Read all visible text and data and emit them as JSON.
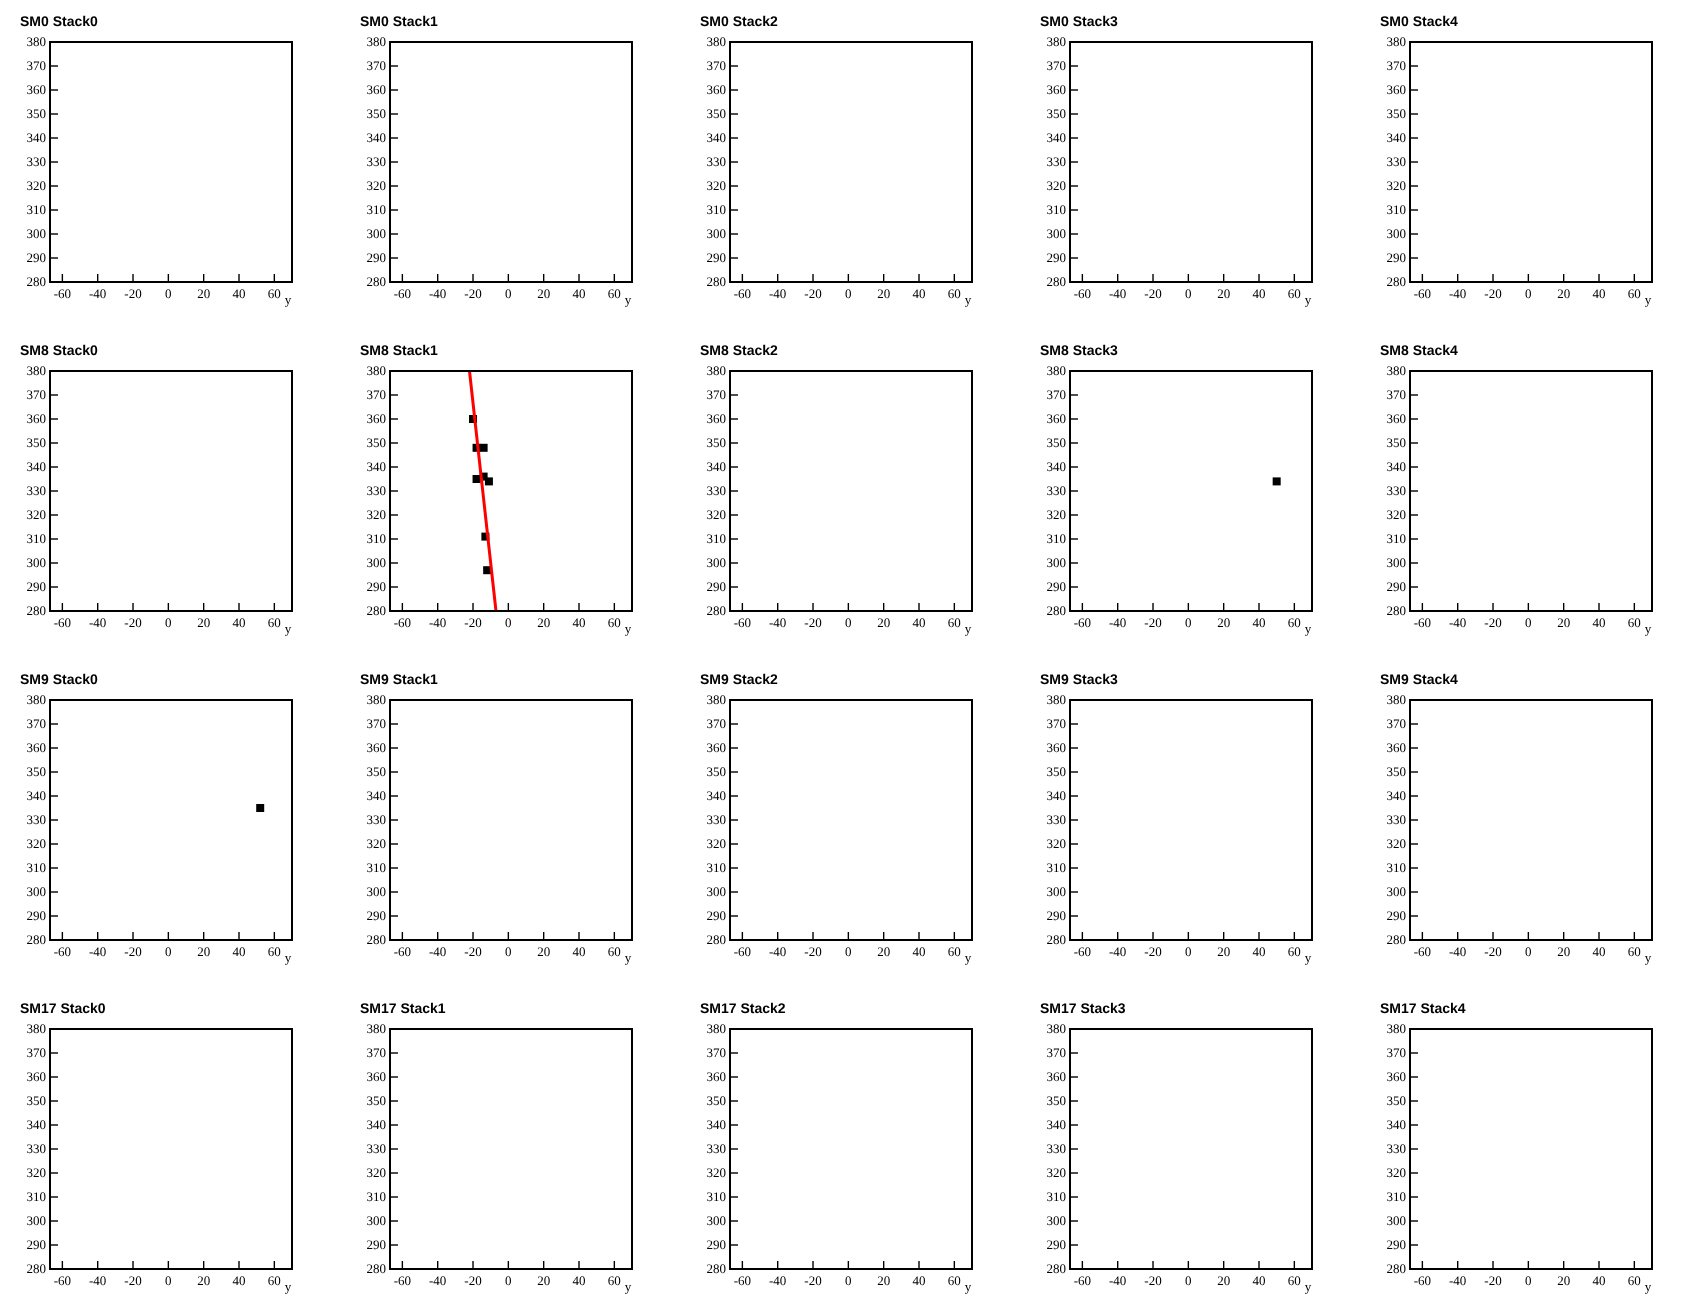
{
  "chart_data": [
    {
      "type": "scatter",
      "title": "SM0 Stack0",
      "xlabel": "y",
      "xlim": [
        -67,
        70
      ],
      "ylim": [
        280,
        380
      ],
      "xticks": [
        -60,
        -40,
        -20,
        0,
        20,
        40,
        60
      ],
      "yticks": [
        280,
        290,
        300,
        310,
        320,
        330,
        340,
        350,
        360,
        370,
        380
      ]
    },
    {
      "type": "scatter",
      "title": "SM0 Stack1",
      "xlabel": "y",
      "xlim": [
        -67,
        70
      ],
      "ylim": [
        280,
        380
      ],
      "xticks": [
        -60,
        -40,
        -20,
        0,
        20,
        40,
        60
      ],
      "yticks": [
        280,
        290,
        300,
        310,
        320,
        330,
        340,
        350,
        360,
        370,
        380
      ]
    },
    {
      "type": "scatter",
      "title": "SM0 Stack2",
      "xlabel": "y",
      "xlim": [
        -67,
        70
      ],
      "ylim": [
        280,
        380
      ],
      "xticks": [
        -60,
        -40,
        -20,
        0,
        20,
        40,
        60
      ],
      "yticks": [
        280,
        290,
        300,
        310,
        320,
        330,
        340,
        350,
        360,
        370,
        380
      ]
    },
    {
      "type": "scatter",
      "title": "SM0 Stack3",
      "xlabel": "y",
      "xlim": [
        -67,
        70
      ],
      "ylim": [
        280,
        380
      ],
      "xticks": [
        -60,
        -40,
        -20,
        0,
        20,
        40,
        60
      ],
      "yticks": [
        280,
        290,
        300,
        310,
        320,
        330,
        340,
        350,
        360,
        370,
        380
      ]
    },
    {
      "type": "scatter",
      "title": "SM0 Stack4",
      "xlabel": "y",
      "xlim": [
        -67,
        70
      ],
      "ylim": [
        280,
        380
      ],
      "xticks": [
        -60,
        -40,
        -20,
        0,
        20,
        40,
        60
      ],
      "yticks": [
        280,
        290,
        300,
        310,
        320,
        330,
        340,
        350,
        360,
        370,
        380
      ]
    },
    {
      "type": "scatter",
      "title": "SM8 Stack0",
      "xlabel": "y",
      "xlim": [
        -67,
        70
      ],
      "ylim": [
        280,
        380
      ],
      "xticks": [
        -60,
        -40,
        -20,
        0,
        20,
        40,
        60
      ],
      "yticks": [
        280,
        290,
        300,
        310,
        320,
        330,
        340,
        350,
        360,
        370,
        380
      ]
    },
    {
      "type": "scatter",
      "title": "SM8 Stack1",
      "xlabel": "y",
      "xlim": [
        -67,
        70
      ],
      "ylim": [
        280,
        380
      ],
      "xticks": [
        -60,
        -40,
        -20,
        0,
        20,
        40,
        60
      ],
      "yticks": [
        280,
        290,
        300,
        310,
        320,
        330,
        340,
        350,
        360,
        370,
        380
      ],
      "series": [
        {
          "color": "#000000",
          "marker": "square",
          "x": [
            -20,
            -18,
            -14,
            -18,
            -14,
            -11,
            -13,
            -12
          ],
          "values": [
            360,
            348,
            348,
            335,
            336,
            334,
            311,
            297
          ]
        },
        {
          "type": "line",
          "color": "#ff0000",
          "x": [
            -22,
            -7
          ],
          "values": [
            380,
            280
          ]
        }
      ]
    },
    {
      "type": "scatter",
      "title": "SM8 Stack2",
      "xlabel": "y",
      "xlim": [
        -67,
        70
      ],
      "ylim": [
        280,
        380
      ],
      "xticks": [
        -60,
        -40,
        -20,
        0,
        20,
        40,
        60
      ],
      "yticks": [
        280,
        290,
        300,
        310,
        320,
        330,
        340,
        350,
        360,
        370,
        380
      ]
    },
    {
      "type": "scatter",
      "title": "SM8 Stack3",
      "xlabel": "y",
      "xlim": [
        -67,
        70
      ],
      "ylim": [
        280,
        380
      ],
      "xticks": [
        -60,
        -40,
        -20,
        0,
        20,
        40,
        60
      ],
      "yticks": [
        280,
        290,
        300,
        310,
        320,
        330,
        340,
        350,
        360,
        370,
        380
      ],
      "marker": "square",
      "series": [
        {
          "color": "#000000",
          "x": [
            50
          ],
          "values": [
            334
          ]
        }
      ]
    },
    {
      "type": "scatter",
      "title": "SM8 Stack4",
      "xlabel": "y",
      "xlim": [
        -67,
        70
      ],
      "ylim": [
        280,
        380
      ],
      "xticks": [
        -60,
        -40,
        -20,
        0,
        20,
        40,
        60
      ],
      "yticks": [
        280,
        290,
        300,
        310,
        320,
        330,
        340,
        350,
        360,
        370,
        380
      ]
    },
    {
      "type": "scatter",
      "title": "SM9 Stack0",
      "xlabel": "y",
      "xlim": [
        -67,
        70
      ],
      "ylim": [
        280,
        380
      ],
      "xticks": [
        -60,
        -40,
        -20,
        0,
        20,
        40,
        60
      ],
      "yticks": [
        280,
        290,
        300,
        310,
        320,
        330,
        340,
        350,
        360,
        370,
        380
      ],
      "marker": "square",
      "series": [
        {
          "color": "#000000",
          "x": [
            52
          ],
          "values": [
            335
          ]
        }
      ]
    },
    {
      "type": "scatter",
      "title": "SM9 Stack1",
      "xlabel": "y",
      "xlim": [
        -67,
        70
      ],
      "ylim": [
        280,
        380
      ],
      "xticks": [
        -60,
        -40,
        -20,
        0,
        20,
        40,
        60
      ],
      "yticks": [
        280,
        290,
        300,
        310,
        320,
        330,
        340,
        350,
        360,
        370,
        380
      ]
    },
    {
      "type": "scatter",
      "title": "SM9 Stack2",
      "xlabel": "y",
      "xlim": [
        -67,
        70
      ],
      "ylim": [
        280,
        380
      ],
      "xticks": [
        -60,
        -40,
        -20,
        0,
        20,
        40,
        60
      ],
      "yticks": [
        280,
        290,
        300,
        310,
        320,
        330,
        340,
        350,
        360,
        370,
        380
      ]
    },
    {
      "type": "scatter",
      "title": "SM9 Stack3",
      "xlabel": "y",
      "xlim": [
        -67,
        70
      ],
      "ylim": [
        280,
        380
      ],
      "xticks": [
        -60,
        -40,
        -20,
        0,
        20,
        40,
        60
      ],
      "yticks": [
        280,
        290,
        300,
        310,
        320,
        330,
        340,
        350,
        360,
        370,
        380
      ]
    },
    {
      "type": "scatter",
      "title": "SM9 Stack4",
      "xlabel": "y",
      "xlim": [
        -67,
        70
      ],
      "ylim": [
        280,
        380
      ],
      "xticks": [
        -60,
        -40,
        -20,
        0,
        20,
        40,
        60
      ],
      "yticks": [
        280,
        290,
        300,
        310,
        320,
        330,
        340,
        350,
        360,
        370,
        380
      ]
    },
    {
      "type": "scatter",
      "title": "SM17 Stack0",
      "xlabel": "y",
      "xlim": [
        -67,
        70
      ],
      "ylim": [
        280,
        380
      ],
      "xticks": [
        -60,
        -40,
        -20,
        0,
        20,
        40,
        60
      ],
      "yticks": [
        280,
        290,
        300,
        310,
        320,
        330,
        340,
        350,
        360,
        370,
        380
      ]
    },
    {
      "type": "scatter",
      "title": "SM17 Stack1",
      "xlabel": "y",
      "xlim": [
        -67,
        70
      ],
      "ylim": [
        280,
        380
      ],
      "xticks": [
        -60,
        -40,
        -20,
        0,
        20,
        40,
        60
      ],
      "yticks": [
        280,
        290,
        300,
        310,
        320,
        330,
        340,
        350,
        360,
        370,
        380
      ]
    },
    {
      "type": "scatter",
      "title": "SM17 Stack2",
      "xlabel": "y",
      "xlim": [
        -67,
        70
      ],
      "ylim": [
        280,
        380
      ],
      "xticks": [
        -60,
        -40,
        -20,
        0,
        20,
        40,
        60
      ],
      "yticks": [
        280,
        290,
        300,
        310,
        320,
        330,
        340,
        350,
        360,
        370,
        380
      ]
    },
    {
      "type": "scatter",
      "title": "SM17 Stack3",
      "xlabel": "y",
      "xlim": [
        -67,
        70
      ],
      "ylim": [
        280,
        380
      ],
      "xticks": [
        -60,
        -40,
        -20,
        0,
        20,
        40,
        60
      ],
      "yticks": [
        280,
        290,
        300,
        310,
        320,
        330,
        340,
        350,
        360,
        370,
        380
      ]
    },
    {
      "type": "scatter",
      "title": "SM17 Stack4",
      "xlabel": "y",
      "xlim": [
        -67,
        70
      ],
      "ylim": [
        280,
        380
      ],
      "xticks": [
        -60,
        -40,
        -20,
        0,
        20,
        40,
        60
      ],
      "yticks": [
        280,
        290,
        300,
        310,
        320,
        330,
        340,
        350,
        360,
        370,
        380
      ]
    }
  ]
}
